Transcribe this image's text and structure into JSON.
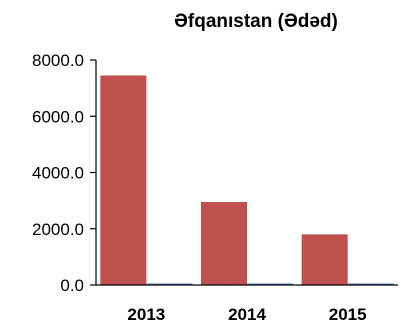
{
  "chart_data": {
    "type": "bar",
    "title": "Əfqanıstan (Ədəd)",
    "xlabel": "",
    "ylabel": "",
    "categories": [
      "2013",
      "2014",
      "2015"
    ],
    "series": [
      {
        "values": [
          7450,
          2950,
          1800
        ],
        "color": "#c0504d"
      },
      {
        "values": [
          0,
          0,
          0
        ],
        "color": "#4f81bd"
      }
    ],
    "ylim": [
      0,
      8000
    ],
    "yticks": [
      "0.0",
      "2000.0",
      "4000.0",
      "6000.0",
      "8000.0"
    ],
    "grid": false,
    "legend": "none"
  }
}
